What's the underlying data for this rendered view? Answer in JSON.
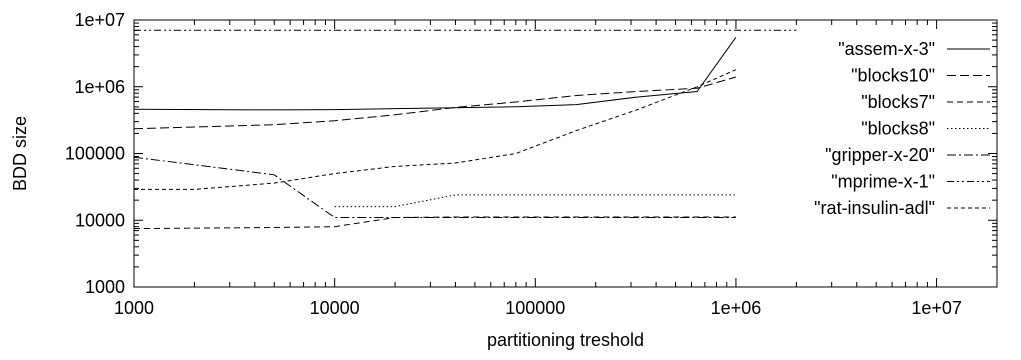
{
  "chart_data": {
    "type": "line",
    "xlabel": "partitioning treshold",
    "ylabel": "BDD size",
    "x_scale": "log",
    "y_scale": "log",
    "xlim": [
      1000,
      20000000
    ],
    "ylim": [
      1000,
      10000000
    ],
    "x_ticks": [
      {
        "value": 1000,
        "label": "1000"
      },
      {
        "value": 10000,
        "label": "10000"
      },
      {
        "value": 100000,
        "label": "100000"
      },
      {
        "value": 1000000,
        "label": "1e+06"
      },
      {
        "value": 10000000,
        "label": "1e+07"
      }
    ],
    "y_ticks": [
      {
        "value": 1000,
        "label": "1000"
      },
      {
        "value": 10000,
        "label": "10000"
      },
      {
        "value": 100000,
        "label": "100000"
      },
      {
        "value": 1000000,
        "label": "1e+06"
      },
      {
        "value": 10000000,
        "label": "1e+07"
      }
    ],
    "grid": false,
    "legend_position": "right",
    "series": [
      {
        "name": "\"assem-x-3\"",
        "dash": "solid",
        "points": [
          [
            1000,
            460000
          ],
          [
            5000,
            450000
          ],
          [
            10000,
            455000
          ],
          [
            20000,
            470000
          ],
          [
            40000,
            485000
          ],
          [
            80000,
            500000
          ],
          [
            160000,
            540000
          ],
          [
            320000,
            700000
          ],
          [
            640000,
            850000
          ],
          [
            1000000,
            5500000
          ]
        ]
      },
      {
        "name": "\"blocks10\"",
        "dash": "long-dash",
        "points": [
          [
            1000,
            235000
          ],
          [
            5000,
            270000
          ],
          [
            10000,
            310000
          ],
          [
            20000,
            380000
          ],
          [
            40000,
            490000
          ],
          [
            80000,
            590000
          ],
          [
            160000,
            740000
          ],
          [
            320000,
            850000
          ],
          [
            640000,
            950000
          ],
          [
            1000000,
            1400000
          ]
        ]
      },
      {
        "name": "\"blocks7\"",
        "dash": "medium-dash",
        "points": [
          [
            1000,
            7500
          ],
          [
            5000,
            7800
          ],
          [
            10000,
            8000
          ],
          [
            20000,
            11000
          ],
          [
            40000,
            11200
          ],
          [
            80000,
            11200
          ],
          [
            160000,
            11200
          ],
          [
            320000,
            11200
          ],
          [
            640000,
            11200
          ],
          [
            1000000,
            11200
          ]
        ]
      },
      {
        "name": "\"blocks8\"",
        "dash": "dotted",
        "points": [
          [
            10000,
            16000
          ],
          [
            20000,
            16000
          ],
          [
            40000,
            24000
          ],
          [
            80000,
            24000
          ],
          [
            160000,
            24000
          ],
          [
            320000,
            24000
          ],
          [
            640000,
            24000
          ],
          [
            1000000,
            24000
          ]
        ]
      },
      {
        "name": "\"gripper-x-20\"",
        "dash": "dash-dot",
        "points": [
          [
            1000,
            88000
          ],
          [
            5000,
            48000
          ],
          [
            10000,
            11000
          ],
          [
            20000,
            11000
          ],
          [
            40000,
            11000
          ],
          [
            80000,
            11000
          ],
          [
            160000,
            11000
          ],
          [
            320000,
            11000
          ],
          [
            640000,
            11000
          ],
          [
            1000000,
            11000
          ]
        ]
      },
      {
        "name": "\"mprime-x-1\"",
        "dash": "dash-dot-dot",
        "points": [
          [
            1000,
            7000000
          ],
          [
            10000,
            7000000
          ],
          [
            100000,
            7000000
          ],
          [
            1000000,
            7000000
          ],
          [
            2000000,
            7000000
          ]
        ]
      },
      {
        "name": "\"rat-insulin-adl\"",
        "dash": "short-dash",
        "points": [
          [
            1000,
            29000
          ],
          [
            2000,
            29000
          ],
          [
            5000,
            36000
          ],
          [
            10000,
            50000
          ],
          [
            20000,
            64000
          ],
          [
            40000,
            72000
          ],
          [
            80000,
            100000
          ],
          [
            160000,
            220000
          ],
          [
            320000,
            450000
          ],
          [
            640000,
            1000000
          ],
          [
            1000000,
            1800000
          ]
        ]
      }
    ]
  }
}
